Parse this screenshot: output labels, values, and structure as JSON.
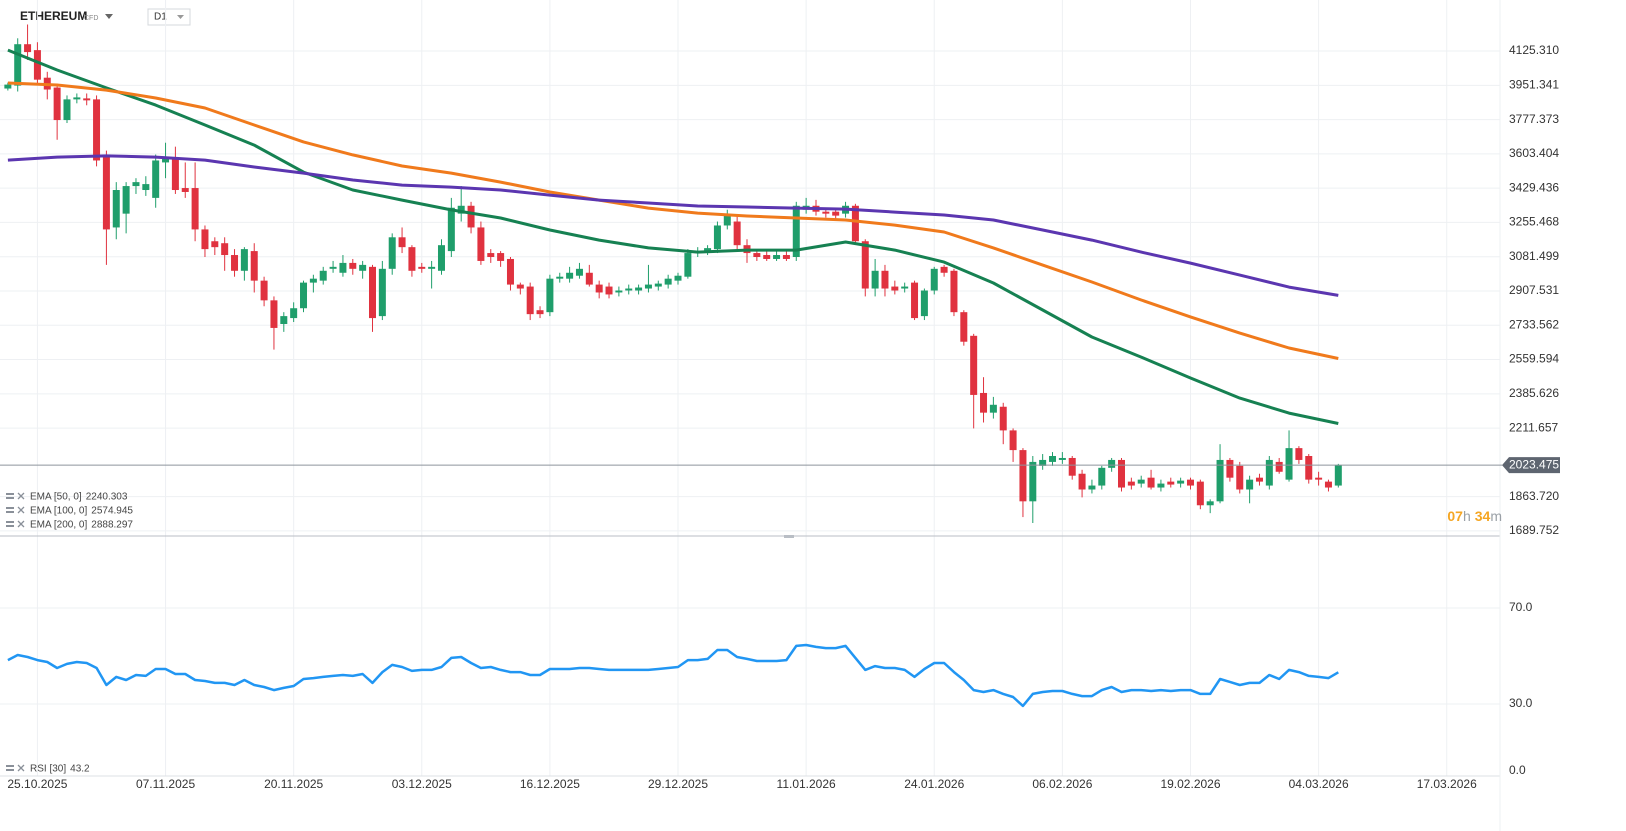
{
  "header": {
    "symbol": "ETHEREUM",
    "kind": "CFD",
    "timeframe": "D1"
  },
  "chart_data": {
    "type": "candlestick",
    "x": [
      "22.10.2025",
      "23.10.2025",
      "24.10.2025",
      "25.10.2025",
      "26.10.2025",
      "27.10.2025",
      "28.10.2025",
      "29.10.2025",
      "30.10.2025",
      "31.10.2025",
      "01.11.2025",
      "02.11.2025",
      "03.11.2025",
      "04.11.2025",
      "05.11.2025",
      "06.11.2025",
      "07.11.2025",
      "08.11.2025",
      "09.11.2025",
      "10.11.2025",
      "11.11.2025",
      "12.11.2025",
      "13.11.2025",
      "14.11.2025",
      "15.11.2025",
      "16.11.2025",
      "17.11.2025",
      "18.11.2025",
      "19.11.2025",
      "20.11.2025",
      "21.11.2025",
      "22.11.2025",
      "23.11.2025",
      "24.11.2025",
      "25.11.2025",
      "26.11.2025",
      "27.11.2025",
      "28.11.2025",
      "29.11.2025",
      "30.11.2025",
      "01.12.2025",
      "02.12.2025",
      "03.12.2025",
      "04.12.2025",
      "05.12.2025",
      "06.12.2025",
      "07.12.2025",
      "08.12.2025",
      "09.12.2025",
      "10.12.2025",
      "11.12.2025",
      "12.12.2025",
      "13.12.2025",
      "14.12.2025",
      "15.12.2025",
      "16.12.2025",
      "17.12.2025",
      "18.12.2025",
      "19.12.2025",
      "20.12.2025",
      "21.12.2025",
      "22.12.2025",
      "23.12.2025",
      "24.12.2025",
      "25.12.2025",
      "26.12.2025",
      "27.12.2025",
      "28.12.2025",
      "29.12.2025",
      "30.12.2025",
      "31.12.2025",
      "01.01.2026",
      "02.01.2026",
      "03.01.2026",
      "04.01.2026",
      "05.01.2026",
      "06.01.2026",
      "07.01.2026",
      "08.01.2026",
      "09.01.2026",
      "10.01.2026",
      "11.01.2026",
      "12.01.2026",
      "13.01.2026",
      "14.01.2026",
      "15.01.2026",
      "16.01.2026",
      "17.01.2026",
      "18.01.2026",
      "19.01.2026",
      "20.01.2026",
      "21.01.2026",
      "22.01.2026",
      "23.01.2026",
      "24.01.2026",
      "25.01.2026",
      "26.01.2026",
      "27.01.2026",
      "28.01.2026",
      "29.01.2026",
      "30.01.2026",
      "31.01.2026",
      "01.02.2026",
      "02.02.2026",
      "03.02.2026",
      "04.02.2026",
      "05.02.2026",
      "06.02.2026",
      "07.02.2026",
      "08.02.2026",
      "09.02.2026",
      "10.02.2026",
      "11.02.2026",
      "12.02.2026",
      "13.02.2026",
      "14.02.2026",
      "15.02.2026",
      "16.02.2026",
      "17.02.2026",
      "18.02.2026",
      "19.02.2026",
      "20.02.2026",
      "21.02.2026",
      "22.02.2026",
      "23.02.2026",
      "24.02.2026",
      "25.02.2026",
      "26.02.2026",
      "27.02.2026",
      "28.02.2026",
      "01.03.2026",
      "02.03.2026",
      "03.03.2026",
      "04.03.2026",
      "05.03.2026",
      "06.03.2026"
    ],
    "ohlc": [
      [
        3935,
        3965,
        3925,
        3955
      ],
      [
        3950,
        4190,
        3920,
        4160
      ],
      [
        4160,
        4260,
        4080,
        4120
      ],
      [
        4130,
        4170,
        3960,
        3980
      ],
      [
        3990,
        4020,
        3880,
        3930
      ],
      [
        3940,
        3960,
        3675,
        3775
      ],
      [
        3775,
        3900,
        3760,
        3880
      ],
      [
        3880,
        3910,
        3860,
        3890
      ],
      [
        3885,
        3910,
        3850,
        3875
      ],
      [
        3880,
        3900,
        3540,
        3570
      ],
      [
        3600,
        3620,
        3040,
        3220
      ],
      [
        3230,
        3460,
        3170,
        3420
      ],
      [
        3300,
        3460,
        3200,
        3440
      ],
      [
        3440,
        3480,
        3400,
        3460
      ],
      [
        3420,
        3490,
        3390,
        3450
      ],
      [
        3380,
        3600,
        3330,
        3570
      ],
      [
        3560,
        3660,
        3480,
        3590
      ],
      [
        3580,
        3640,
        3400,
        3420
      ],
      [
        3430,
        3560,
        3380,
        3410
      ],
      [
        3430,
        3560,
        3160,
        3220
      ],
      [
        3220,
        3240,
        3080,
        3120
      ],
      [
        3160,
        3180,
        3090,
        3130
      ],
      [
        3150,
        3180,
        3010,
        3090
      ],
      [
        3090,
        3120,
        2980,
        3010
      ],
      [
        3010,
        3130,
        2960,
        3120
      ],
      [
        3110,
        3150,
        2900,
        2960
      ],
      [
        2960,
        2980,
        2830,
        2860
      ],
      [
        2860,
        2880,
        2610,
        2720
      ],
      [
        2740,
        2800,
        2700,
        2780
      ],
      [
        2770,
        2850,
        2750,
        2820
      ],
      [
        2820,
        2960,
        2800,
        2950
      ],
      [
        2950,
        2990,
        2900,
        2970
      ],
      [
        2960,
        3030,
        2940,
        3010
      ],
      [
        3020,
        3060,
        3000,
        3030
      ],
      [
        3000,
        3090,
        2980,
        3050
      ],
      [
        3050,
        3070,
        2990,
        3020
      ],
      [
        3010,
        3060,
        2970,
        3040
      ],
      [
        3030,
        3040,
        2700,
        2770
      ],
      [
        2780,
        3060,
        2760,
        3020
      ],
      [
        3020,
        3200,
        2990,
        3180
      ],
      [
        3180,
        3230,
        3100,
        3130
      ],
      [
        3130,
        3140,
        2980,
        3010
      ],
      [
        3030,
        3050,
        3000,
        3020
      ],
      [
        3020,
        3060,
        2920,
        3030
      ],
      [
        3010,
        3170,
        2990,
        3140
      ],
      [
        3110,
        3380,
        3080,
        3330
      ],
      [
        3300,
        3440,
        3260,
        3340
      ],
      [
        3340,
        3360,
        3200,
        3230
      ],
      [
        3230,
        3260,
        3040,
        3060
      ],
      [
        3100,
        3120,
        3050,
        3080
      ],
      [
        3100,
        3110,
        3030,
        3060
      ],
      [
        3070,
        3080,
        2910,
        2940
      ],
      [
        2940,
        2950,
        2890,
        2920
      ],
      [
        2930,
        2950,
        2760,
        2790
      ],
      [
        2810,
        2830,
        2770,
        2790
      ],
      [
        2800,
        2990,
        2780,
        2970
      ],
      [
        2970,
        3000,
        2950,
        2980
      ],
      [
        2970,
        3030,
        2950,
        3000
      ],
      [
        2985,
        3050,
        2970,
        3020
      ],
      [
        3000,
        3040,
        2930,
        2940
      ],
      [
        2940,
        2960,
        2870,
        2900
      ],
      [
        2930,
        2950,
        2870,
        2890
      ],
      [
        2900,
        2930,
        2880,
        2910
      ],
      [
        2910,
        2940,
        2890,
        2920
      ],
      [
        2910,
        2940,
        2890,
        2925
      ],
      [
        2920,
        3040,
        2900,
        2940
      ],
      [
        2930,
        2960,
        2910,
        2945
      ],
      [
        2940,
        2990,
        2920,
        2970
      ],
      [
        2960,
        3000,
        2940,
        2985
      ],
      [
        2980,
        3120,
        2970,
        3100
      ],
      [
        3100,
        3130,
        3080,
        3110
      ],
      [
        3110,
        3140,
        3090,
        3125
      ],
      [
        3120,
        3260,
        3100,
        3240
      ],
      [
        3240,
        3320,
        3220,
        3290
      ],
      [
        3260,
        3290,
        3120,
        3140
      ],
      [
        3140,
        3170,
        3050,
        3100
      ],
      [
        3100,
        3120,
        3060,
        3080
      ],
      [
        3090,
        3110,
        3060,
        3070
      ],
      [
        3070,
        3110,
        3060,
        3090
      ],
      [
        3090,
        3110,
        3060,
        3070
      ],
      [
        3080,
        3360,
        3060,
        3340
      ],
      [
        3320,
        3380,
        3300,
        3340
      ],
      [
        3340,
        3370,
        3290,
        3310
      ],
      [
        3310,
        3330,
        3280,
        3300
      ],
      [
        3310,
        3330,
        3270,
        3290
      ],
      [
        3300,
        3360,
        3280,
        3340
      ],
      [
        3340,
        3350,
        3150,
        3160
      ],
      [
        3160,
        3170,
        2880,
        2920
      ],
      [
        2920,
        3070,
        2880,
        3010
      ],
      [
        3010,
        3040,
        2880,
        2920
      ],
      [
        2930,
        2960,
        2890,
        2910
      ],
      [
        2920,
        2950,
        2900,
        2930
      ],
      [
        2950,
        2960,
        2760,
        2770
      ],
      [
        2780,
        2920,
        2760,
        2910
      ],
      [
        2910,
        3030,
        2890,
        3020
      ],
      [
        3030,
        3040,
        2980,
        3000
      ],
      [
        3010,
        3020,
        2780,
        2800
      ],
      [
        2800,
        2810,
        2630,
        2650
      ],
      [
        2680,
        2690,
        2210,
        2380
      ],
      [
        2390,
        2470,
        2240,
        2290
      ],
      [
        2290,
        2370,
        2260,
        2330
      ],
      [
        2320,
        2340,
        2130,
        2200
      ],
      [
        2200,
        2210,
        2040,
        2100
      ],
      [
        2100,
        2110,
        1760,
        1840
      ],
      [
        1840,
        2070,
        1730,
        2040
      ],
      [
        2020,
        2080,
        2000,
        2050
      ],
      [
        2040,
        2090,
        2020,
        2070
      ],
      [
        2050,
        2090,
        2030,
        2060
      ],
      [
        2060,
        2070,
        1950,
        1970
      ],
      [
        1980,
        2000,
        1860,
        1900
      ],
      [
        1900,
        1950,
        1880,
        1920
      ],
      [
        1920,
        2020,
        1900,
        2010
      ],
      [
        2010,
        2060,
        1990,
        2050
      ],
      [
        2050,
        2060,
        1890,
        1910
      ],
      [
        1940,
        1960,
        1900,
        1920
      ],
      [
        1930,
        1970,
        1910,
        1950
      ],
      [
        1960,
        2000,
        1900,
        1910
      ],
      [
        1910,
        1950,
        1890,
        1930
      ],
      [
        1940,
        1960,
        1910,
        1925
      ],
      [
        1930,
        1960,
        1910,
        1945
      ],
      [
        1950,
        1960,
        1900,
        1920
      ],
      [
        1940,
        1950,
        1800,
        1820
      ],
      [
        1820,
        1850,
        1780,
        1840
      ],
      [
        1840,
        2130,
        1830,
        2050
      ],
      [
        2050,
        2060,
        1940,
        1960
      ],
      [
        2020,
        2040,
        1880,
        1900
      ],
      [
        1900,
        1970,
        1830,
        1950
      ],
      [
        1960,
        1980,
        1920,
        1940
      ],
      [
        1920,
        2070,
        1900,
        2050
      ],
      [
        2040,
        2060,
        1980,
        1990
      ],
      [
        1950,
        2200,
        1940,
        2110
      ],
      [
        2110,
        2120,
        2030,
        2050
      ],
      [
        2070,
        2080,
        1930,
        1950
      ],
      [
        1960,
        1990,
        1920,
        1950
      ],
      [
        1940,
        1950,
        1890,
        1910
      ],
      [
        1920,
        2030,
        1910,
        2023.475
      ]
    ],
    "colors": {
      "up": "#1f9e6b",
      "down": "#e0323f"
    },
    "xlim": [
      "21.10.2025",
      "22.03.2026"
    ],
    "xticks": [
      "25.10.2025",
      "07.11.2025",
      "20.11.2025",
      "03.12.2025",
      "16.12.2025",
      "29.12.2025",
      "11.01.2026",
      "24.01.2026",
      "06.02.2026",
      "19.02.2026",
      "04.03.2026",
      "17.03.2026"
    ],
    "ylim": [
      1664,
      4293
    ],
    "yticks": [
      {
        "value": 4125.31,
        "label": "4125.310"
      },
      3951.341,
      3777.373,
      3603.404,
      3429.436,
      3255.468,
      3081.499,
      2907.531,
      2733.562,
      2559.594,
      2385.626,
      2211.657,
      {
        "value": 1863.72,
        "label": "1863.720"
      },
      1689.752
    ],
    "grid": true,
    "last_price": 2023.475,
    "countdown": [
      "07",
      "h",
      "34",
      "m"
    ],
    "indicators": {
      "x": [
        "22.10.2025",
        "27.10.2025",
        "01.11.2025",
        "06.11.2025",
        "11.11.2025",
        "16.11.2025",
        "21.11.2025",
        "26.11.2025",
        "01.12.2025",
        "06.12.2025",
        "11.12.2025",
        "16.12.2025",
        "21.12.2025",
        "26.12.2025",
        "31.12.2025",
        "05.01.2026",
        "10.01.2026",
        "15.01.2026",
        "20.01.2026",
        "25.01.2026",
        "30.01.2026",
        "04.02.2026",
        "09.02.2026",
        "14.02.2026",
        "19.02.2026",
        "24.02.2026",
        "01.03.2026",
        "06.03.2026"
      ],
      "series": [
        {
          "name": "EMA [50, 0]",
          "color": "#168152",
          "last": 2240.303,
          "values": [
            4130,
            4029,
            3938,
            3851,
            3750,
            3648,
            3511,
            3420,
            3369,
            3319,
            3278,
            3217,
            3166,
            3126,
            3105,
            3115,
            3115,
            3156,
            3115,
            3054,
            2948,
            2811,
            2674,
            2572,
            2466,
            2364,
            2288,
            2235
          ]
        },
        {
          "name": "EMA [100, 0]",
          "color": "#f07a1c",
          "last": 2574.945,
          "values": [
            3963,
            3953,
            3927,
            3887,
            3836,
            3750,
            3664,
            3598,
            3542,
            3506,
            3460,
            3410,
            3369,
            3328,
            3303,
            3288,
            3278,
            3268,
            3242,
            3207,
            3126,
            3039,
            2953,
            2862,
            2776,
            2694,
            2618,
            2565
          ]
        },
        {
          "name": "EMA [200, 0]",
          "color": "#5b36b0",
          "last": 2888.297,
          "values": [
            3572,
            3587,
            3593,
            3587,
            3572,
            3537,
            3506,
            3471,
            3445,
            3435,
            3420,
            3394,
            3369,
            3354,
            3339,
            3334,
            3328,
            3323,
            3308,
            3293,
            3268,
            3217,
            3166,
            3105,
            3049,
            2988,
            2927,
            2885
          ]
        }
      ]
    },
    "rsi": {
      "name": "RSI [30]",
      "last": 43.2,
      "color": "#2196f3",
      "ylim": [
        0,
        100
      ],
      "yticks": [
        {
          "value": 70,
          "label": "70.0"
        },
        {
          "value": 30,
          "label": "30.0"
        },
        {
          "value": 0,
          "label": "0.0"
        }
      ],
      "values": [
        48.3,
        50.4,
        49.6,
        48.3,
        47.5,
        45.0,
        46.7,
        47.5,
        47.1,
        45.0,
        37.9,
        41.3,
        40.0,
        42.1,
        41.7,
        44.6,
        44.6,
        42.5,
        42.5,
        40.0,
        39.6,
        38.8,
        38.8,
        37.9,
        40.0,
        37.9,
        37.1,
        35.8,
        36.7,
        37.5,
        40.4,
        40.8,
        41.3,
        41.7,
        42.1,
        41.7,
        42.5,
        38.8,
        43.3,
        46.3,
        45.4,
        43.8,
        44.2,
        44.2,
        45.4,
        49.2,
        49.6,
        47.1,
        45.0,
        45.4,
        44.2,
        43.3,
        43.3,
        42.1,
        42.1,
        44.6,
        44.6,
        44.6,
        45.0,
        45.0,
        44.6,
        44.2,
        44.2,
        44.2,
        44.2,
        44.2,
        44.6,
        45.0,
        45.4,
        48.3,
        48.3,
        48.8,
        52.5,
        52.5,
        49.6,
        48.8,
        47.9,
        47.9,
        47.9,
        48.3,
        54.2,
        54.6,
        53.8,
        53.3,
        53.3,
        54.2,
        49.2,
        44.2,
        45.8,
        45.0,
        45.0,
        44.2,
        41.3,
        44.6,
        47.1,
        47.1,
        43.3,
        40.0,
        35.8,
        35.0,
        35.8,
        34.2,
        32.9,
        29.2,
        34.2,
        35.0,
        35.4,
        35.4,
        34.2,
        33.3,
        33.3,
        35.8,
        37.1,
        35.0,
        35.8,
        35.8,
        35.4,
        35.8,
        35.4,
        35.8,
        35.8,
        34.2,
        34.2,
        40.4,
        39.2,
        37.9,
        38.8,
        38.8,
        42.1,
        40.4,
        44.2,
        43.3,
        41.7,
        41.3,
        40.8,
        43.2
      ]
    }
  }
}
